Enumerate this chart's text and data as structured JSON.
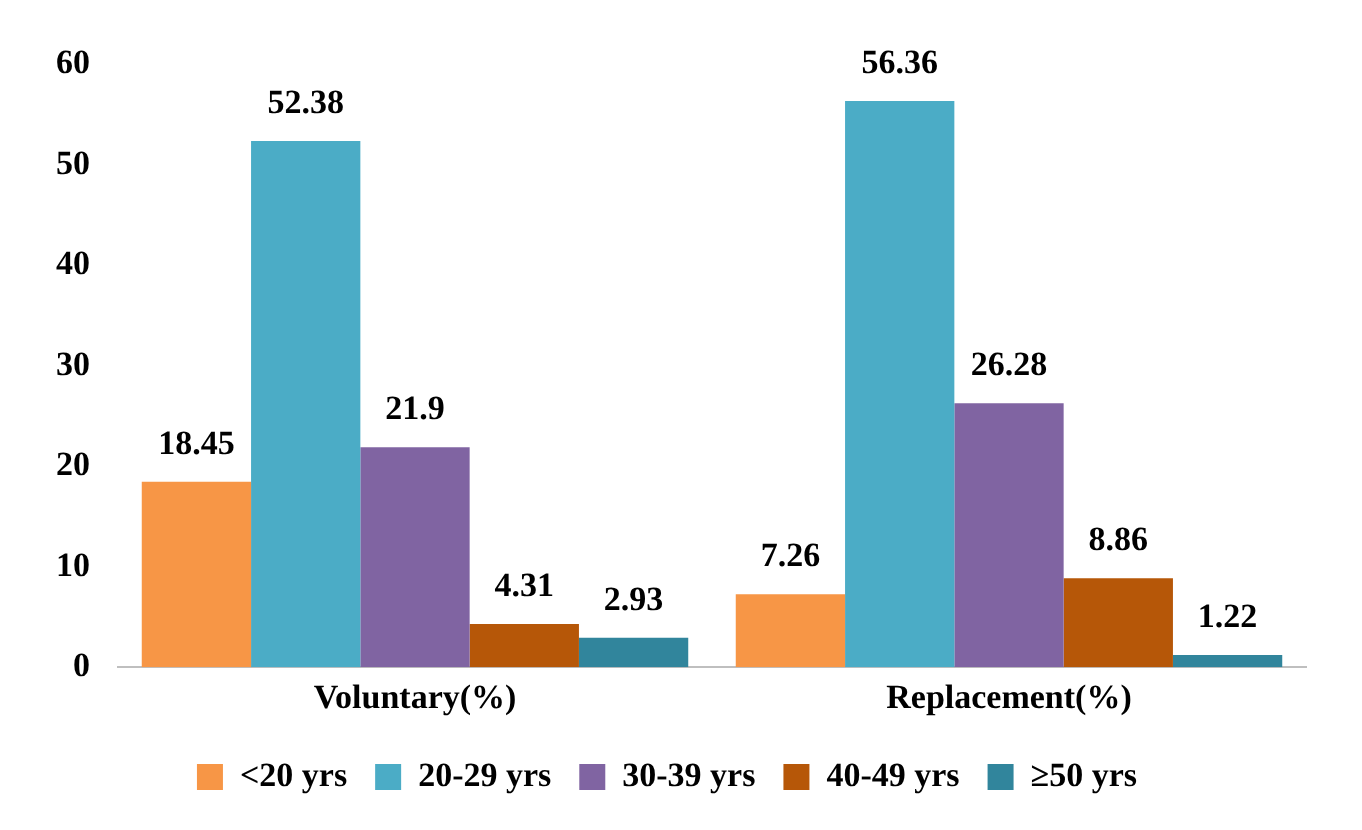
{
  "chart_data": {
    "type": "bar",
    "categories": [
      "Voluntary(%)",
      "Replacement(%)"
    ],
    "series": [
      {
        "name": "<20 yrs",
        "color": "#f79646",
        "values": [
          18.45,
          7.26
        ]
      },
      {
        "name": "20-29 yrs",
        "color": "#4bacc6",
        "values": [
          52.38,
          56.36
        ]
      },
      {
        "name": "30-39 yrs",
        "color": "#8064a2",
        "values": [
          21.9,
          26.28
        ]
      },
      {
        "name": "40-49 yrs",
        "color": "#b65708",
        "values": [
          4.31,
          8.86
        ]
      },
      {
        "name": "≥50 yrs",
        "color": "#31859c",
        "values": [
          2.93,
          1.22
        ]
      }
    ],
    "ylim": [
      0,
      60
    ],
    "yticks": [
      0,
      10,
      20,
      30,
      40,
      50,
      60
    ],
    "grid": false,
    "legend": "bottom",
    "data_labels": true
  }
}
